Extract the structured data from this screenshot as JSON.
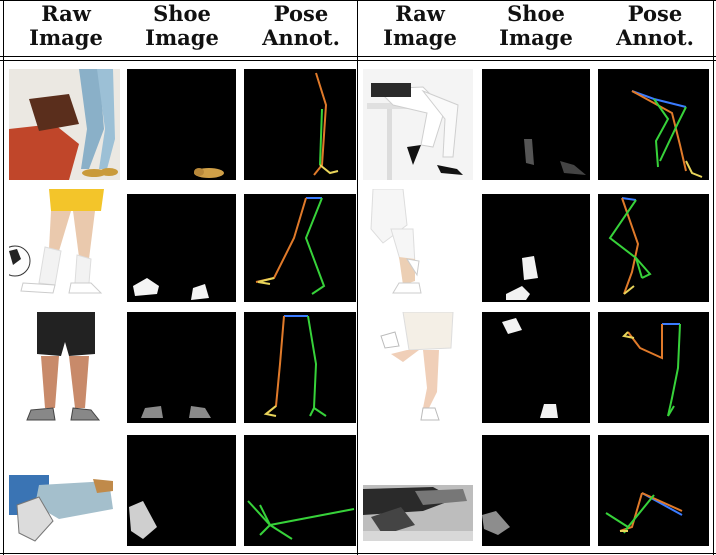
{
  "headers": {
    "left": [
      "Raw\nImage",
      "Shoe\nImage",
      "Pose\nAnnot."
    ],
    "right": [
      "Raw\nImage",
      "Shoe\nImage",
      "Pose\nAnnot."
    ]
  },
  "rows": [
    {
      "left_raw": "man in jeans and tan shoes sitting on saddle",
      "right_raw": "woman in white pants and black heels sitting on stool"
    },
    {
      "left_raw": "legs in yellow shorts kicking soccer ball, white sneakers",
      "right_raw": "legs in white leggings and white sneakers"
    },
    {
      "left_raw": "man in black shorts and grey sneakers standing",
      "right_raw": "woman in white lace skirt and white heels"
    },
    {
      "left_raw": "person in light jeans sitting, sneakers",
      "right_raw": "black and white photo of person sitting, sneakers"
    }
  ],
  "colors": {
    "pose_blue": "#3a7bff",
    "pose_orange": "#e07a2a",
    "pose_green": "#37d23a",
    "pose_yellow": "#e8d45a"
  }
}
